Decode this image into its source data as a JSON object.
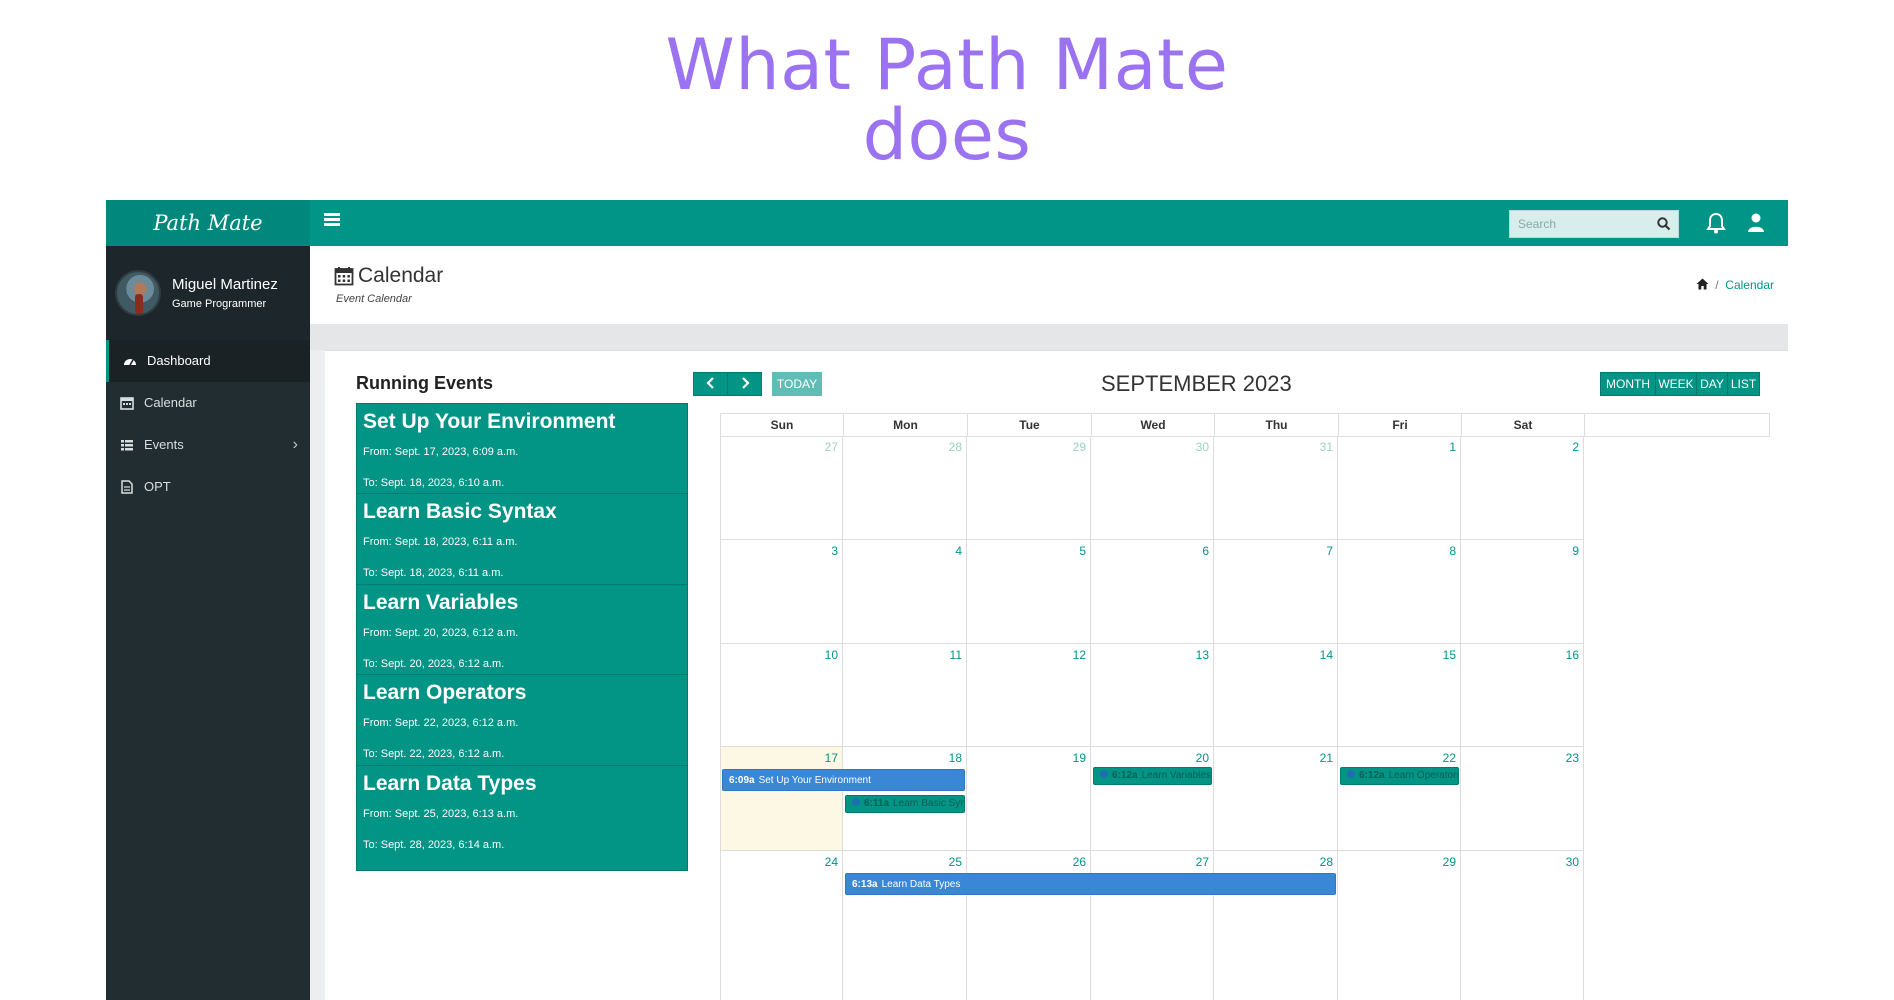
{
  "headline": {
    "line1": "What Path Mate",
    "line2": "does"
  },
  "topbar": {
    "brand": "Path Mate",
    "search_placeholder": "Search",
    "icons": [
      "menu-icon",
      "search-icon",
      "bell-icon",
      "user-icon"
    ],
    "color": "#019588"
  },
  "sidebar": {
    "user_name": "Miguel Martinez",
    "user_role": "Game Programmer",
    "items": [
      {
        "label": "Dashboard",
        "icon": "dashboard-icon",
        "active": true
      },
      {
        "label": "Calendar",
        "icon": "calendar-icon",
        "active": false
      },
      {
        "label": "Events",
        "icon": "list-icon",
        "active": false,
        "has_submenu": true
      },
      {
        "label": "OPT",
        "icon": "document-icon",
        "active": false
      }
    ]
  },
  "header": {
    "title": "Calendar",
    "subtitle": "Event Calendar",
    "breadcrumb": {
      "current": "Calendar"
    }
  },
  "running_events": {
    "title": "Running Events",
    "items": [
      {
        "title": "Set Up Your Environment",
        "from": "From: Sept. 17, 2023, 6:09 a.m.",
        "to": "To: Sept. 18, 2023, 6:10 a.m."
      },
      {
        "title": "Learn Basic Syntax",
        "from": "From: Sept. 18, 2023, 6:11 a.m.",
        "to": "To: Sept. 18, 2023, 6:11 a.m."
      },
      {
        "title": "Learn Variables",
        "from": "From: Sept. 20, 2023, 6:12 a.m.",
        "to": "To: Sept. 20, 2023, 6:12 a.m."
      },
      {
        "title": "Learn Operators",
        "from": "From: Sept. 22, 2023, 6:12 a.m.",
        "to": "To: Sept. 22, 2023, 6:12 a.m."
      },
      {
        "title": "Learn Data Types",
        "from": "From: Sept. 25, 2023, 6:13 a.m.",
        "to": "To: Sept. 28, 2023, 6:14 a.m."
      }
    ]
  },
  "calendar": {
    "month_title": "SEPTEMBER 2023",
    "today_label": "TODAY",
    "views": [
      "MONTH",
      "WEEK",
      "DAY",
      "LIST"
    ],
    "weekdays": [
      "Sun",
      "Mon",
      "Tue",
      "Wed",
      "Thu",
      "Fri",
      "Sat"
    ],
    "weeks": [
      [
        27,
        28,
        29,
        30,
        31,
        1,
        2
      ],
      [
        3,
        4,
        5,
        6,
        7,
        8,
        9
      ],
      [
        10,
        11,
        12,
        13,
        14,
        15,
        16
      ],
      [
        17,
        18,
        19,
        20,
        21,
        22,
        23
      ],
      [
        24,
        25,
        26,
        27,
        28,
        29,
        30
      ]
    ],
    "other_month_days": {
      "week": 0,
      "count": 5
    },
    "today": {
      "week": 3,
      "day": 0
    },
    "events": [
      {
        "time": "6:09a",
        "title": "Set Up Your Environment",
        "style": "blue",
        "week": 3,
        "start_day": 0,
        "end_day": 1,
        "lane": 0
      },
      {
        "time": "6:11a",
        "title": "Learn Basic Syntax",
        "style": "green",
        "week": 3,
        "start_day": 1,
        "end_day": 1,
        "lane": 1
      },
      {
        "time": "6:12a",
        "title": "Learn Variables",
        "style": "green",
        "week": 3,
        "start_day": 3,
        "end_day": 3,
        "lane": 0
      },
      {
        "time": "6:12a",
        "title": "Learn Operators",
        "style": "green",
        "week": 3,
        "start_day": 5,
        "end_day": 5,
        "lane": 0
      },
      {
        "time": "6:13a",
        "title": "Learn Data Types",
        "style": "blue",
        "week": 4,
        "start_day": 1,
        "end_day": 4,
        "lane": 0
      }
    ],
    "colors": {
      "primary": "#029485",
      "event_blue": "#3a87d6",
      "today_bg": "#fcf8e3"
    }
  }
}
